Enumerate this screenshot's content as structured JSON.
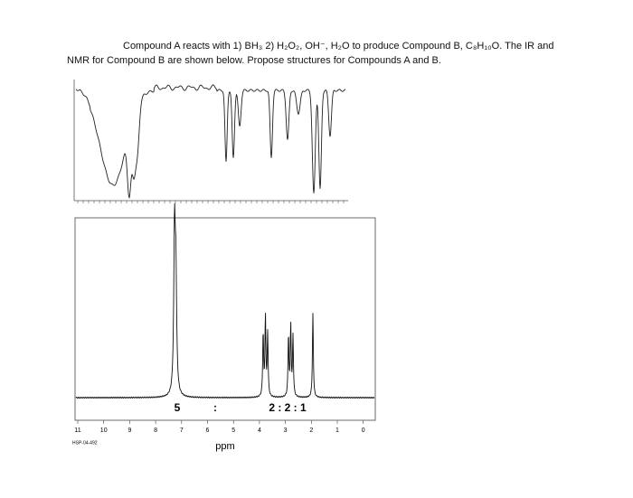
{
  "question": {
    "line1": "Compound A reacts with 1) BH₃ 2) H₂O₂, OH⁻, H₂O to produce Compound B, C₈H₁₀O.  The IR and",
    "line2": "NMR for Compound B are shown below.  Propose structures for Compounds A and B."
  },
  "nmr": {
    "axis_labels": [
      "11",
      "10",
      "9",
      "8",
      "7",
      "6",
      "5",
      "4",
      "3",
      "2",
      "1",
      "0"
    ],
    "axis_title": "ppm",
    "sample_code": "HSP-04-492",
    "integration_aromatic": "5",
    "integration_separator": ":",
    "integration_aliphatic": "2 : 2 : 1"
  }
}
